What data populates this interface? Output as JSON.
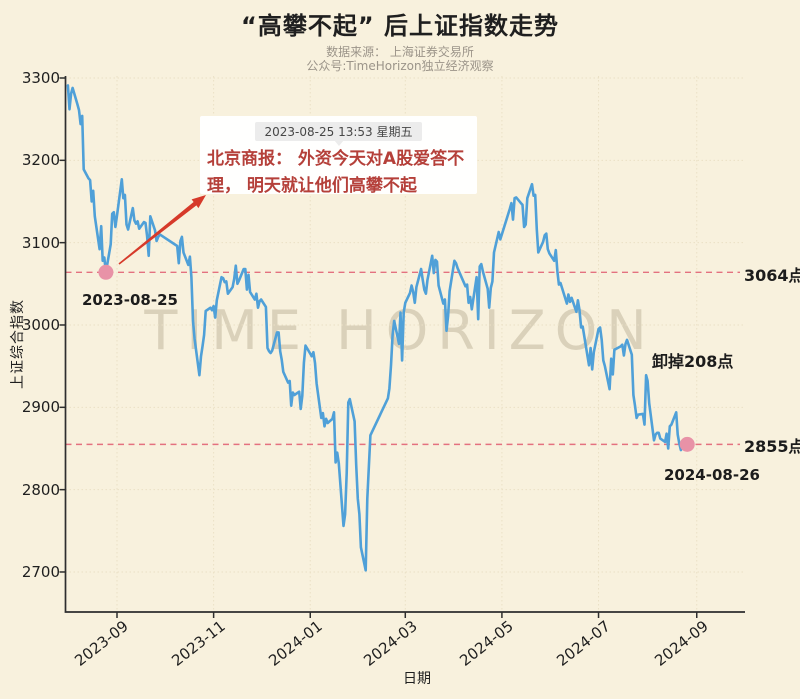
{
  "header": {
    "title": "“高攀不起” 后上证指数走势",
    "source_line": "数据来源： 上海证券交易所",
    "account_line": "公众号:TimeHorizon独立经济观察"
  },
  "watermark": "TIME HORIZON",
  "annotation_card": {
    "timestamp": "2023-08-25 13:53 星期五",
    "text_line1": "北京商报： 外资今天对A股爱答不",
    "text_line2": "理， 明天就让他们高攀不起"
  },
  "labels": {
    "start_point_date": "2023-08-25",
    "end_point_date": "2024-08-26",
    "high_ref": "3064点",
    "low_ref": "2855点",
    "drop_note": "卸掉208点"
  },
  "colors": {
    "background": "#f8f1dd",
    "line": "#4fa0d8",
    "reference": "#e4717f",
    "marker": "#e892a7",
    "arrow": "#d63a2a",
    "grid": "#eae0c5",
    "axis": "#2e2e2e"
  },
  "chart_data": {
    "type": "line",
    "title": "“高攀不起” 后上证指数走势",
    "xlabel": "日期",
    "ylabel": "上证综合指数",
    "ylim": [
      2650,
      3305
    ],
    "grid": true,
    "legend": false,
    "y_ticks": [
      2700,
      2800,
      2900,
      3000,
      3100,
      3200,
      3300
    ],
    "x_ticks": [
      {
        "date": "2023-09-01",
        "label": "2023-09"
      },
      {
        "date": "2023-11-01",
        "label": "2023-11"
      },
      {
        "date": "2024-01-01",
        "label": "2024-01"
      },
      {
        "date": "2024-03-01",
        "label": "2024-03"
      },
      {
        "date": "2024-05-01",
        "label": "2024-05"
      },
      {
        "date": "2024-07-01",
        "label": "2024-07"
      },
      {
        "date": "2024-09-01",
        "label": "2024-09"
      }
    ],
    "reference_lines": [
      {
        "value": 3064,
        "label": "3064点"
      },
      {
        "value": 2855,
        "label": "2855点"
      }
    ],
    "markers": [
      {
        "date": "2023-08-25",
        "value": 3064,
        "label": "2023-08-25"
      },
      {
        "date": "2024-08-26",
        "value": 2855,
        "label": "2024-08-26"
      }
    ],
    "series": [
      {
        "name": "上证综合指数",
        "points": [
          [
            "2023-08-01",
            3291
          ],
          [
            "2023-08-02",
            3262
          ],
          [
            "2023-08-03",
            3281
          ],
          [
            "2023-08-04",
            3288
          ],
          [
            "2023-08-07",
            3268
          ],
          [
            "2023-08-08",
            3261
          ],
          [
            "2023-08-09",
            3244
          ],
          [
            "2023-08-10",
            3254
          ],
          [
            "2023-08-11",
            3189
          ],
          [
            "2023-08-14",
            3178
          ],
          [
            "2023-08-15",
            3176
          ],
          [
            "2023-08-16",
            3150
          ],
          [
            "2023-08-17",
            3163
          ],
          [
            "2023-08-18",
            3132
          ],
          [
            "2023-08-21",
            3092
          ],
          [
            "2023-08-22",
            3120
          ],
          [
            "2023-08-23",
            3078
          ],
          [
            "2023-08-24",
            3082
          ],
          [
            "2023-08-25",
            3064
          ],
          [
            "2023-08-28",
            3098
          ],
          [
            "2023-08-29",
            3135
          ],
          [
            "2023-08-30",
            3137
          ],
          [
            "2023-08-31",
            3119
          ],
          [
            "2023-09-01",
            3133
          ],
          [
            "2023-09-04",
            3177
          ],
          [
            "2023-09-05",
            3154
          ],
          [
            "2023-09-06",
            3158
          ],
          [
            "2023-09-07",
            3122
          ],
          [
            "2023-09-08",
            3116
          ],
          [
            "2023-09-11",
            3142
          ],
          [
            "2023-09-12",
            3127
          ],
          [
            "2023-09-13",
            3123
          ],
          [
            "2023-09-14",
            3126
          ],
          [
            "2023-09-15",
            3117
          ],
          [
            "2023-09-18",
            3125
          ],
          [
            "2023-09-19",
            3124
          ],
          [
            "2023-09-20",
            3108
          ],
          [
            "2023-09-21",
            3084
          ],
          [
            "2023-09-22",
            3132
          ],
          [
            "2023-09-25",
            3115
          ],
          [
            "2023-09-26",
            3102
          ],
          [
            "2023-09-27",
            3107
          ],
          [
            "2023-09-28",
            3110
          ],
          [
            "2023-10-09",
            3096
          ],
          [
            "2023-10-10",
            3075
          ],
          [
            "2023-10-11",
            3102
          ],
          [
            "2023-10-12",
            3107
          ],
          [
            "2023-10-13",
            3088
          ],
          [
            "2023-10-16",
            3073
          ],
          [
            "2023-10-17",
            3083
          ],
          [
            "2023-10-18",
            3058
          ],
          [
            "2023-10-19",
            3005
          ],
          [
            "2023-10-20",
            2983
          ],
          [
            "2023-10-23",
            2939
          ],
          [
            "2023-10-24",
            2962
          ],
          [
            "2023-10-25",
            2974
          ],
          [
            "2023-10-26",
            2988
          ],
          [
            "2023-10-27",
            3017
          ],
          [
            "2023-10-30",
            3021
          ],
          [
            "2023-10-31",
            3018
          ],
          [
            "2023-11-01",
            3023
          ],
          [
            "2023-11-02",
            3009
          ],
          [
            "2023-11-03",
            3030
          ],
          [
            "2023-11-06",
            3058
          ],
          [
            "2023-11-07",
            3057
          ],
          [
            "2023-11-08",
            3052
          ],
          [
            "2023-11-09",
            3053
          ],
          [
            "2023-11-10",
            3038
          ],
          [
            "2023-11-13",
            3046
          ],
          [
            "2023-11-14",
            3056
          ],
          [
            "2023-11-15",
            3072
          ],
          [
            "2023-11-16",
            3050
          ],
          [
            "2023-11-17",
            3054
          ],
          [
            "2023-11-20",
            3068
          ],
          [
            "2023-11-21",
            3068
          ],
          [
            "2023-11-22",
            3043
          ],
          [
            "2023-11-23",
            3061
          ],
          [
            "2023-11-24",
            3040
          ],
          [
            "2023-11-27",
            3031
          ],
          [
            "2023-11-28",
            3038
          ],
          [
            "2023-11-29",
            3021
          ],
          [
            "2023-11-30",
            3029
          ],
          [
            "2023-12-01",
            3031
          ],
          [
            "2023-12-04",
            3022
          ],
          [
            "2023-12-05",
            2972
          ],
          [
            "2023-12-06",
            2968
          ],
          [
            "2023-12-07",
            2966
          ],
          [
            "2023-12-08",
            2969
          ],
          [
            "2023-12-11",
            2991
          ],
          [
            "2023-12-12",
            2991
          ],
          [
            "2023-12-13",
            2968
          ],
          [
            "2023-12-14",
            2958
          ],
          [
            "2023-12-15",
            2943
          ],
          [
            "2023-12-18",
            2930
          ],
          [
            "2023-12-19",
            2932
          ],
          [
            "2023-12-20",
            2902
          ],
          [
            "2023-12-21",
            2918
          ],
          [
            "2023-12-22",
            2915
          ],
          [
            "2023-12-25",
            2919
          ],
          [
            "2023-12-26",
            2898
          ],
          [
            "2023-12-27",
            2914
          ],
          [
            "2023-12-28",
            2954
          ],
          [
            "2023-12-29",
            2975
          ],
          [
            "2024-01-02",
            2962
          ],
          [
            "2024-01-03",
            2967
          ],
          [
            "2024-01-04",
            2954
          ],
          [
            "2024-01-05",
            2929
          ],
          [
            "2024-01-08",
            2887
          ],
          [
            "2024-01-09",
            2893
          ],
          [
            "2024-01-10",
            2877
          ],
          [
            "2024-01-11",
            2886
          ],
          [
            "2024-01-12",
            2881
          ],
          [
            "2024-01-15",
            2886
          ],
          [
            "2024-01-16",
            2894
          ],
          [
            "2024-01-17",
            2833
          ],
          [
            "2024-01-18",
            2845
          ],
          [
            "2024-01-19",
            2832
          ],
          [
            "2024-01-22",
            2756
          ],
          [
            "2024-01-23",
            2770
          ],
          [
            "2024-01-24",
            2820
          ],
          [
            "2024-01-25",
            2906
          ],
          [
            "2024-01-26",
            2910
          ],
          [
            "2024-01-29",
            2883
          ],
          [
            "2024-01-30",
            2830
          ],
          [
            "2024-01-31",
            2789
          ],
          [
            "2024-02-01",
            2770
          ],
          [
            "2024-02-02",
            2730
          ],
          [
            "2024-02-05",
            2702
          ],
          [
            "2024-02-06",
            2789
          ],
          [
            "2024-02-07",
            2829
          ],
          [
            "2024-02-08",
            2866
          ],
          [
            "2024-02-19",
            2911
          ],
          [
            "2024-02-20",
            2923
          ],
          [
            "2024-02-21",
            2951
          ],
          [
            "2024-02-22",
            2988
          ],
          [
            "2024-02-23",
            3005
          ],
          [
            "2024-02-26",
            2977
          ],
          [
            "2024-02-27",
            3015
          ],
          [
            "2024-02-28",
            2957
          ],
          [
            "2024-02-29",
            3015
          ],
          [
            "2024-03-01",
            3027
          ],
          [
            "2024-03-04",
            3039
          ],
          [
            "2024-03-05",
            3048
          ],
          [
            "2024-03-06",
            3040
          ],
          [
            "2024-03-07",
            3027
          ],
          [
            "2024-03-08",
            3046
          ],
          [
            "2024-03-11",
            3068
          ],
          [
            "2024-03-12",
            3055
          ],
          [
            "2024-03-13",
            3043
          ],
          [
            "2024-03-14",
            3038
          ],
          [
            "2024-03-15",
            3055
          ],
          [
            "2024-03-18",
            3084
          ],
          [
            "2024-03-19",
            3063
          ],
          [
            "2024-03-20",
            3079
          ],
          [
            "2024-03-21",
            3077
          ],
          [
            "2024-03-22",
            3048
          ],
          [
            "2024-03-25",
            3026
          ],
          [
            "2024-03-26",
            3031
          ],
          [
            "2024-03-27",
            2993
          ],
          [
            "2024-03-28",
            3011
          ],
          [
            "2024-03-29",
            3041
          ],
          [
            "2024-04-01",
            3078
          ],
          [
            "2024-04-02",
            3075
          ],
          [
            "2024-04-03",
            3069
          ],
          [
            "2024-04-08",
            3047
          ],
          [
            "2024-04-09",
            3049
          ],
          [
            "2024-04-10",
            3027
          ],
          [
            "2024-04-11",
            3034
          ],
          [
            "2024-04-12",
            3019
          ],
          [
            "2024-04-15",
            3058
          ],
          [
            "2024-04-16",
            3007
          ],
          [
            "2024-04-17",
            3071
          ],
          [
            "2024-04-18",
            3074
          ],
          [
            "2024-04-19",
            3065
          ],
          [
            "2024-04-22",
            3044
          ],
          [
            "2024-04-23",
            3021
          ],
          [
            "2024-04-24",
            3045
          ],
          [
            "2024-04-25",
            3053
          ],
          [
            "2024-04-26",
            3088
          ],
          [
            "2024-04-29",
            3113
          ],
          [
            "2024-04-30",
            3104
          ],
          [
            "2024-05-06",
            3141
          ],
          [
            "2024-05-07",
            3148
          ],
          [
            "2024-05-08",
            3128
          ],
          [
            "2024-05-09",
            3154
          ],
          [
            "2024-05-10",
            3155
          ],
          [
            "2024-05-13",
            3148
          ],
          [
            "2024-05-14",
            3146
          ],
          [
            "2024-05-15",
            3119
          ],
          [
            "2024-05-16",
            3122
          ],
          [
            "2024-05-17",
            3154
          ],
          [
            "2024-05-20",
            3171
          ],
          [
            "2024-05-21",
            3157
          ],
          [
            "2024-05-22",
            3158
          ],
          [
            "2024-05-23",
            3116
          ],
          [
            "2024-05-24",
            3088
          ],
          [
            "2024-05-27",
            3101
          ],
          [
            "2024-05-28",
            3109
          ],
          [
            "2024-05-29",
            3111
          ],
          [
            "2024-05-30",
            3092
          ],
          [
            "2024-05-31",
            3087
          ],
          [
            "2024-06-03",
            3078
          ],
          [
            "2024-06-04",
            3091
          ],
          [
            "2024-06-05",
            3065
          ],
          [
            "2024-06-06",
            3049
          ],
          [
            "2024-06-07",
            3051
          ],
          [
            "2024-06-11",
            3026
          ],
          [
            "2024-06-12",
            3037
          ],
          [
            "2024-06-13",
            3028
          ],
          [
            "2024-06-14",
            3033
          ],
          [
            "2024-06-17",
            3016
          ],
          [
            "2024-06-18",
            3030
          ],
          [
            "2024-06-19",
            3018
          ],
          [
            "2024-06-20",
            2997
          ],
          [
            "2024-06-21",
            2998
          ],
          [
            "2024-06-24",
            2963
          ],
          [
            "2024-06-25",
            2951
          ],
          [
            "2024-06-26",
            2972
          ],
          [
            "2024-06-27",
            2946
          ],
          [
            "2024-06-28",
            2967
          ],
          [
            "2024-07-01",
            2995
          ],
          [
            "2024-07-02",
            2997
          ],
          [
            "2024-07-03",
            2982
          ],
          [
            "2024-07-04",
            2957
          ],
          [
            "2024-07-05",
            2950
          ],
          [
            "2024-07-08",
            2922
          ],
          [
            "2024-07-09",
            2959
          ],
          [
            "2024-07-10",
            2940
          ],
          [
            "2024-07-11",
            2970
          ],
          [
            "2024-07-12",
            2971
          ],
          [
            "2024-07-15",
            2974
          ],
          [
            "2024-07-16",
            2976
          ],
          [
            "2024-07-17",
            2963
          ],
          [
            "2024-07-18",
            2977
          ],
          [
            "2024-07-19",
            2982
          ],
          [
            "2024-07-22",
            2964
          ],
          [
            "2024-07-23",
            2915
          ],
          [
            "2024-07-24",
            2902
          ],
          [
            "2024-07-25",
            2887
          ],
          [
            "2024-07-26",
            2891
          ],
          [
            "2024-07-29",
            2892
          ],
          [
            "2024-07-30",
            2879
          ],
          [
            "2024-07-31",
            2939
          ],
          [
            "2024-08-01",
            2932
          ],
          [
            "2024-08-02",
            2905
          ],
          [
            "2024-08-05",
            2860
          ],
          [
            "2024-08-06",
            2867
          ],
          [
            "2024-08-07",
            2869
          ],
          [
            "2024-08-08",
            2869
          ],
          [
            "2024-08-09",
            2862
          ],
          [
            "2024-08-12",
            2858
          ],
          [
            "2024-08-13",
            2868
          ],
          [
            "2024-08-14",
            2850
          ],
          [
            "2024-08-15",
            2877
          ],
          [
            "2024-08-16",
            2879
          ],
          [
            "2024-08-19",
            2894
          ],
          [
            "2024-08-20",
            2867
          ],
          [
            "2024-08-21",
            2856
          ],
          [
            "2024-08-22",
            2848
          ],
          [
            "2024-08-23",
            2854
          ],
          [
            "2024-08-26",
            2855
          ]
        ]
      }
    ]
  }
}
